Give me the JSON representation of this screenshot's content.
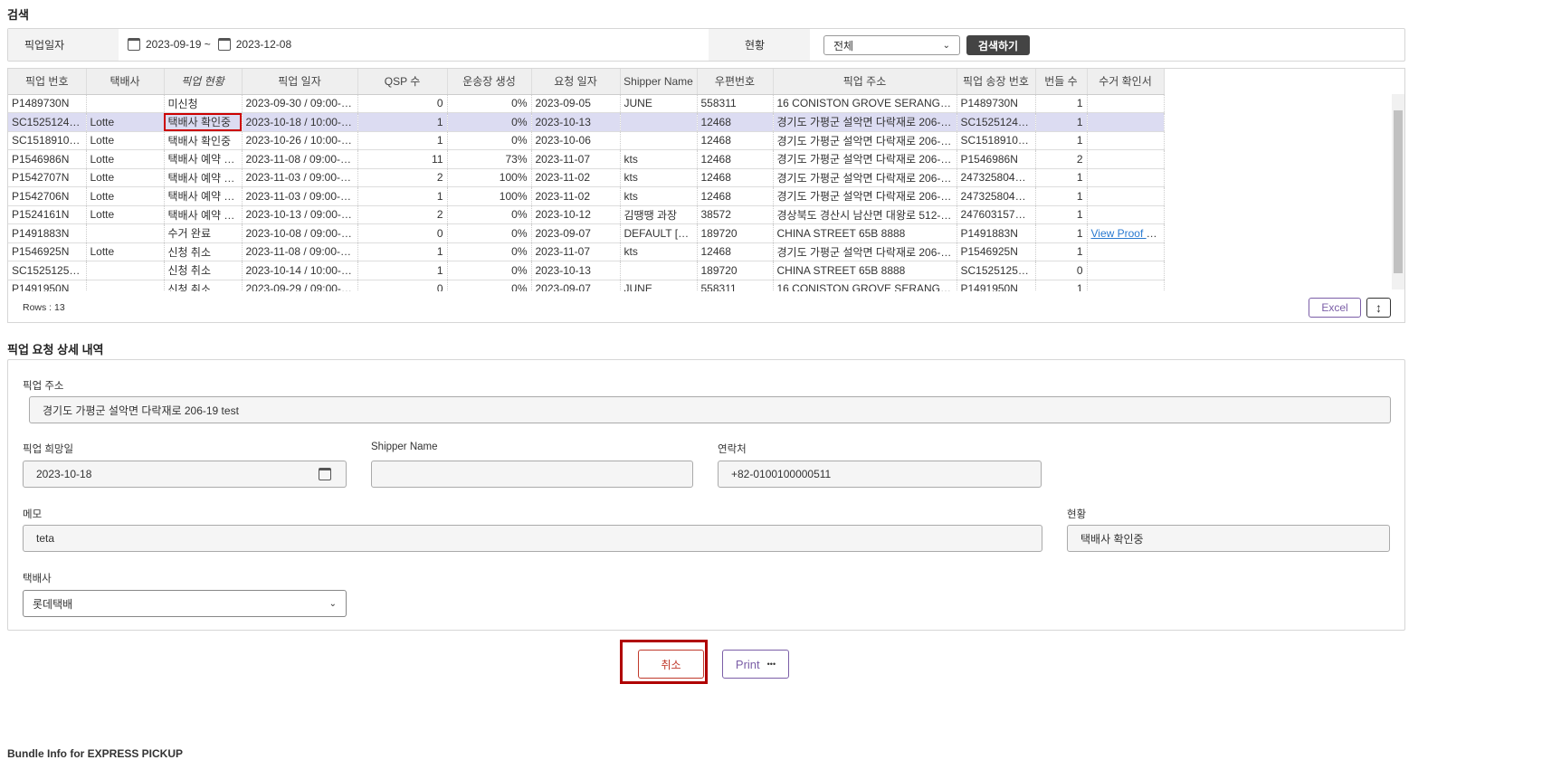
{
  "search": {
    "title": "검색",
    "date_label": "픽업일자",
    "date_from": "2023-09-19 ~",
    "date_to": "2023-12-08",
    "status_label": "현황",
    "status_value": "전체",
    "search_button": "검색하기"
  },
  "grid": {
    "columns": [
      "픽업 번호",
      "택배사",
      "픽업 현황",
      "픽업 일자",
      "QSP 수",
      "운송장 생성",
      "요청 일자",
      "Shipper Name",
      "우편번호",
      "픽업 주소",
      "픽업 송장 번호",
      "번들 수",
      "수거 확인서"
    ],
    "rows": [
      [
        "P1489730N",
        "",
        "미신청",
        "2023-09-30 / 09:00-17:00",
        "0",
        "0%",
        "2023-09-05",
        "JUNE",
        "558311",
        "16 CONISTON GROVE SERANGOON GA...",
        "P1489730N",
        "1",
        ""
      ],
      [
        "SC1525124KR...",
        "Lotte",
        "택배사 확인중",
        "2023-10-18 / 10:00-19:00",
        "1",
        "0%",
        "2023-10-13",
        "",
        "12468",
        "경기도 가평군 설악면 다락재로 206-19 test",
        "SC1525124KR...",
        "1",
        ""
      ],
      [
        "SC1518910KR...",
        "Lotte",
        "택배사 확인중",
        "2023-10-26 / 10:00-19:00",
        "1",
        "0%",
        "2023-10-06",
        "",
        "12468",
        "경기도 가평군 설악면 다락재로 206-19 test",
        "SC1518910KR...",
        "1",
        ""
      ],
      [
        "P1546986N",
        "Lotte",
        "택배사 예약 상태",
        "2023-11-08 / 09:00-17:00",
        "11",
        "73%",
        "2023-11-07",
        "kts",
        "12468",
        "경기도 가평군 설악면 다락재로 206-19 test",
        "P1546986N",
        "2",
        ""
      ],
      [
        "P1542707N",
        "Lotte",
        "택배사 예약 상태",
        "2023-11-03 / 09:00-17:00",
        "2",
        "100%",
        "2023-11-02",
        "kts",
        "12468",
        "경기도 가평군 설악면 다락재로 206-19 test",
        "247325804784",
        "1",
        ""
      ],
      [
        "P1542706N",
        "Lotte",
        "택배사 예약 상태",
        "2023-11-03 / 09:00-17:00",
        "1",
        "100%",
        "2023-11-02",
        "kts",
        "12468",
        "경기도 가평군 설악면 다락재로 206-19 test",
        "247325804773",
        "1",
        ""
      ],
      [
        "P1524161N",
        "Lotte",
        "택배사 예약 상태",
        "2023-10-13 / 09:00-17:00",
        "2",
        "0%",
        "2023-10-12",
        "김땡땡 과장",
        "38572",
        "경상북도 경산시 남산면 대왕로 512-1 12 ...",
        "247603157222",
        "1",
        ""
      ],
      [
        "P1491883N",
        "",
        "수거 완료",
        "2023-10-08 / 09:00-17:00",
        "0",
        "0%",
        "2023-09-07",
        "DEFAULT [Deli...",
        "189720",
        "CHINA STREET 65B 8888",
        "P1491883N",
        "1",
        "View Proof of ..."
      ],
      [
        "P1546925N",
        "Lotte",
        "신청 취소",
        "2023-11-08 / 09:00-17:00",
        "1",
        "0%",
        "2023-11-07",
        "kts",
        "12468",
        "경기도 가평군 설악면 다락재로 206-19 test",
        "P1546925N",
        "1",
        ""
      ],
      [
        "SC1525125SG...",
        "",
        "신청 취소",
        "2023-10-14 / 10:00-19:00",
        "1",
        "0%",
        "2023-10-13",
        "",
        "189720",
        "CHINA STREET 65B 8888",
        "SC1525125SG...",
        "0",
        ""
      ],
      [
        "P1491950N",
        "",
        "신청 취소",
        "2023-09-29 / 09:00-17:00",
        "0",
        "0%",
        "2023-09-07",
        "JUNE",
        "558311",
        "16 CONISTON GROVE SERANGOON GA...",
        "P1491950N",
        "1",
        ""
      ]
    ],
    "selected_row": 1,
    "rows_count": "Rows : 13",
    "excel_button": "Excel"
  },
  "detail": {
    "title": "픽업 요청 상세 내역",
    "address_label": "픽업 주소",
    "address_value": "경기도 가평군 설악면 다락재로 206-19 test",
    "date_label": "픽업 희망일",
    "date_value": "2023-10-18",
    "shipper_label": "Shipper Name",
    "shipper_value": "",
    "contact_label": "연락처",
    "contact_value": "+82-0100100000511",
    "memo_label": "메모",
    "memo_value": "teta",
    "status_label": "현황",
    "status_value": "택배사 확인중",
    "carrier_label": "택배사",
    "carrier_value": "롯데택배"
  },
  "actions": {
    "cancel_button": "취소",
    "print_button": "Print",
    "print_more": "•••"
  },
  "footer_partial": "Bundle Info for EXPRESS PICKUP",
  "colors": {
    "highlight": "#c00000",
    "selected_row": "#dcdcf2",
    "accent_purple": "#7b5ea7",
    "cancel_red": "#c0392b"
  }
}
